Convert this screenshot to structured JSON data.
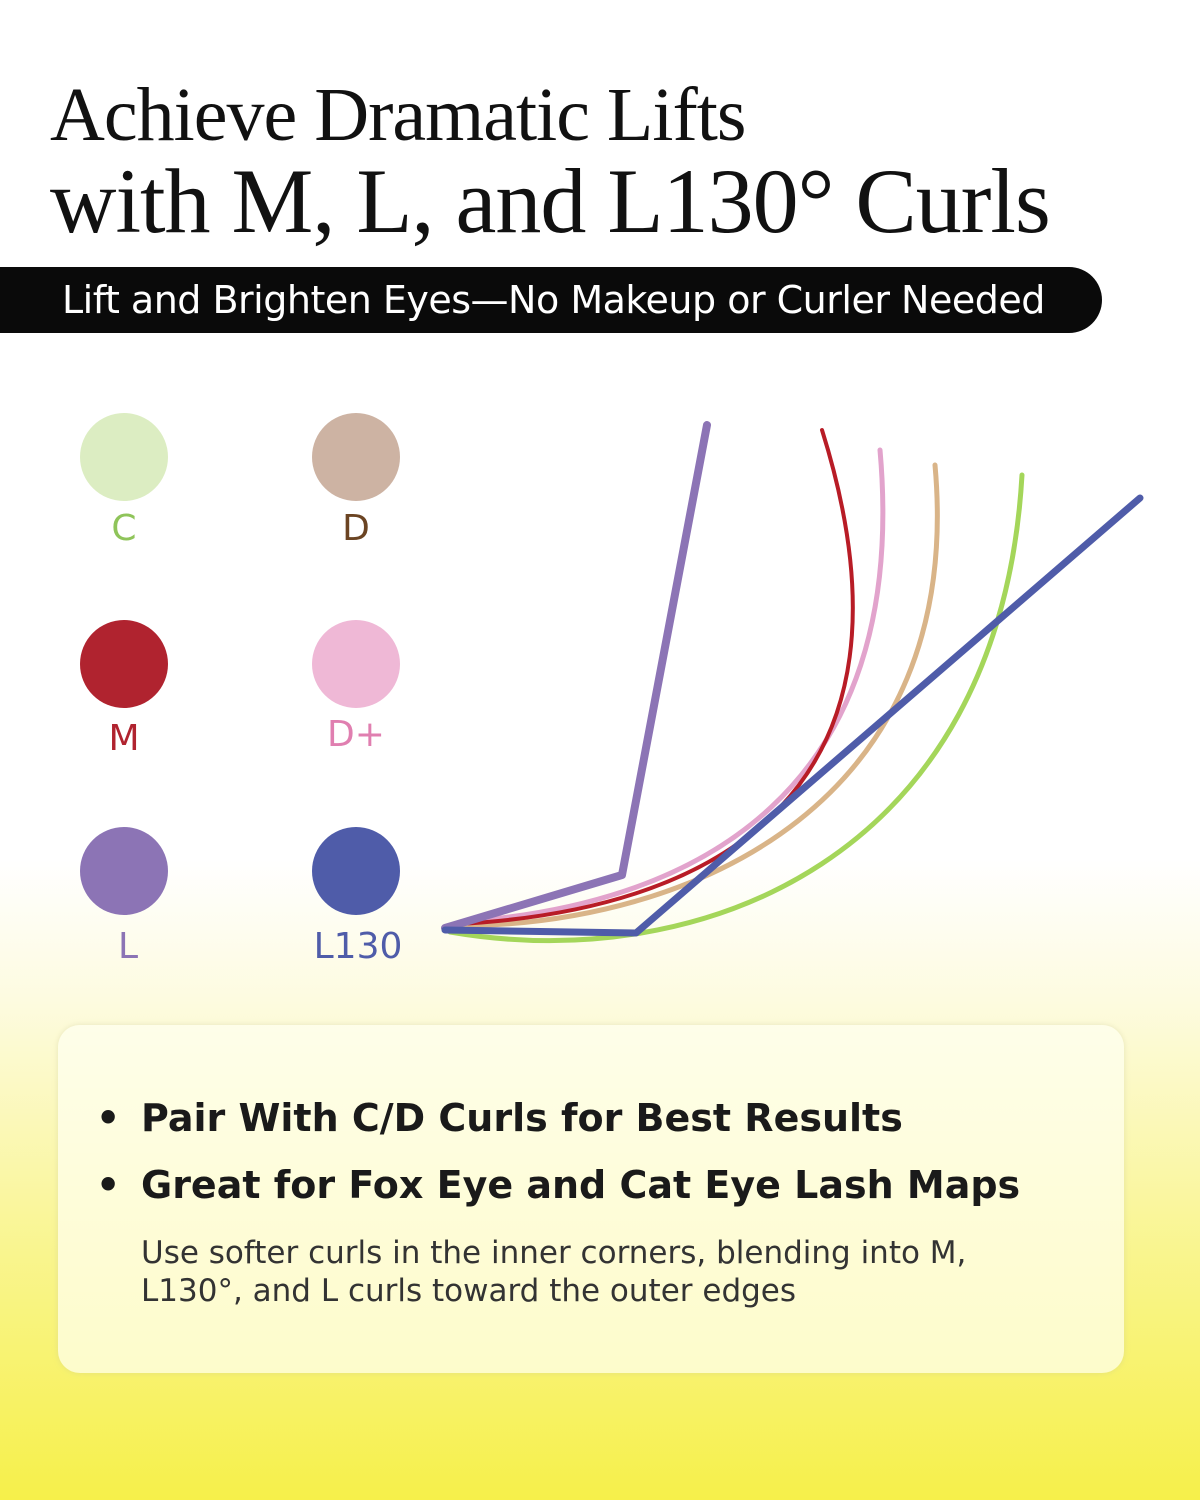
{
  "title": {
    "line1": "Achieve Dramatic Lifts",
    "line2": "with M, L, and L130° Curls"
  },
  "banner": "Lift and Brighten Eyes—No Makeup or Curler Needed",
  "legend": [
    {
      "label": "C",
      "dot_color": "#dcedc2",
      "text_color": "#8fc45a"
    },
    {
      "label": "D",
      "dot_color": "#cdb3a3",
      "text_color": "#6b4423"
    },
    {
      "label": "M",
      "dot_color": "#b0232f",
      "text_color": "#b0232f"
    },
    {
      "label": "D+",
      "dot_color": "#efb8d6",
      "text_color": "#e07fb0"
    },
    {
      "label": "L",
      "dot_color": "#8c74b5",
      "text_color": "#8c74b5"
    },
    {
      "label": "L130",
      "dot_color": "#4f5ca9",
      "text_color": "#4f5ca9"
    }
  ],
  "curl_colors": {
    "C": "#a4d65a",
    "D": "#d9b488",
    "D+": "#e2a3cc",
    "M": "#b81c26",
    "L": "#8c74b5",
    "L130": "#4f5ca9"
  },
  "card": {
    "bullets": [
      "Pair With C/D Curls for Best Results",
      "Great for Fox Eye and Cat Eye Lash Maps"
    ],
    "note": "Use softer curls in the inner corners, blending into M, L130°, and L curls toward the outer edges"
  }
}
